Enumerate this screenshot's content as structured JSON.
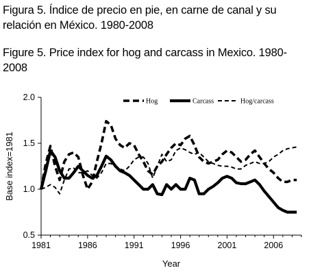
{
  "captions": {
    "spanish": "Figura 5. Índice de precio en pie, en carne de canal y su relación en México. 1980-2008",
    "english": "Figure 5. Price index for hog and carcass in Mexico. 1980-2008"
  },
  "chart_data": {
    "type": "line",
    "title": "",
    "xlabel": "Year",
    "ylabel": "Base index=1981",
    "xlim": [
      1981,
      2009
    ],
    "ylim": [
      0.5,
      2.0
    ],
    "xticks": [
      1981,
      1986,
      1991,
      1996,
      2001,
      2006
    ],
    "yticks": [
      "0.5",
      "1.0",
      "1.5",
      "2.0"
    ],
    "legend_position": "top",
    "grid": false,
    "series": [
      {
        "name": "Hog",
        "style": "bold-dashed",
        "color": "#000000",
        "x": [
          1981,
          1981.5,
          1982,
          1982.5,
          1983,
          1983.5,
          1984,
          1984.5,
          1985,
          1985.5,
          1986,
          1986.5,
          1987,
          1987.5,
          1988,
          1988.5,
          1989,
          1989.5,
          1990,
          1990.5,
          1991,
          1991.5,
          1992,
          1992.5,
          1993,
          1993.5,
          1994,
          1994.5,
          1995,
          1995.5,
          1996,
          1996.5,
          1997,
          1997.5,
          1998,
          1998.5,
          1999,
          1999.5,
          2000,
          2000.5,
          2001,
          2001.5,
          2002,
          2002.5,
          2003,
          2003.5,
          2004,
          2004.5,
          2005,
          2005.5,
          2006,
          2006.5,
          2007,
          2007.5,
          2008,
          2008.5
        ],
        "values": [
          1.0,
          1.28,
          1.47,
          1.25,
          1.1,
          1.3,
          1.38,
          1.4,
          1.35,
          1.15,
          1.0,
          1.08,
          1.3,
          1.5,
          1.74,
          1.7,
          1.55,
          1.48,
          1.45,
          1.5,
          1.48,
          1.38,
          1.3,
          1.2,
          1.16,
          1.25,
          1.3,
          1.38,
          1.45,
          1.5,
          1.48,
          1.55,
          1.58,
          1.48,
          1.35,
          1.3,
          1.28,
          1.3,
          1.32,
          1.38,
          1.42,
          1.4,
          1.35,
          1.3,
          1.32,
          1.38,
          1.42,
          1.35,
          1.28,
          1.22,
          1.18,
          1.12,
          1.08,
          1.08,
          1.1,
          1.1
        ]
      },
      {
        "name": "Carcass",
        "style": "bold-solid",
        "color": "#000000",
        "x": [
          1981,
          1981.5,
          1982,
          1982.5,
          1983,
          1983.5,
          1984,
          1984.5,
          1985,
          1985.5,
          1986,
          1986.5,
          1987,
          1987.5,
          1988,
          1988.5,
          1989,
          1989.5,
          1990,
          1990.5,
          1991,
          1991.5,
          1992,
          1992.5,
          1993,
          1993.5,
          1994,
          1994.5,
          1995,
          1995.5,
          1996,
          1996.5,
          1997,
          1997.5,
          1998,
          1998.5,
          1999,
          1999.5,
          2000,
          2000.5,
          2001,
          2001.5,
          2002,
          2002.5,
          2003,
          2003.5,
          2004,
          2004.5,
          2005,
          2005.5,
          2006,
          2006.5,
          2007,
          2007.5,
          2008,
          2008.5
        ],
        "values": [
          1.0,
          1.2,
          1.42,
          1.35,
          1.2,
          1.12,
          1.12,
          1.18,
          1.25,
          1.2,
          1.15,
          1.12,
          1.15,
          1.25,
          1.36,
          1.32,
          1.25,
          1.2,
          1.18,
          1.15,
          1.1,
          1.05,
          1.0,
          1.0,
          1.05,
          0.95,
          0.94,
          1.05,
          1.0,
          1.05,
          1.0,
          1.0,
          1.12,
          1.1,
          0.95,
          0.95,
          1.0,
          1.03,
          1.07,
          1.12,
          1.14,
          1.12,
          1.07,
          1.06,
          1.06,
          1.08,
          1.1,
          1.05,
          0.98,
          0.92,
          0.86,
          0.8,
          0.77,
          0.75,
          0.75,
          0.75
        ]
      },
      {
        "name": "Hog/carcass",
        "style": "thin-dashed",
        "color": "#000000",
        "x": [
          1981,
          1981.5,
          1982,
          1982.5,
          1983,
          1983.5,
          1984,
          1984.5,
          1985,
          1985.5,
          1986,
          1986.5,
          1987,
          1987.5,
          1988,
          1988.5,
          1989,
          1989.5,
          1990,
          1990.5,
          1991,
          1991.5,
          1992,
          1992.5,
          1993,
          1993.5,
          1994,
          1994.5,
          1995,
          1995.5,
          1996,
          1996.5,
          1997,
          1997.5,
          1998,
          1998.5,
          1999,
          1999.5,
          2000,
          2000.5,
          2001,
          2001.5,
          2002,
          2002.5,
          2003,
          2003.5,
          2004,
          2004.5,
          2005,
          2005.5,
          2006,
          2006.5,
          2007,
          2007.5,
          2008,
          2008.5
        ],
        "values": [
          1.0,
          1.02,
          1.05,
          1.02,
          0.95,
          1.1,
          1.22,
          1.23,
          1.18,
          1.18,
          1.2,
          1.15,
          1.12,
          1.18,
          1.28,
          1.28,
          1.25,
          1.22,
          1.2,
          1.25,
          1.32,
          1.35,
          1.35,
          1.28,
          1.12,
          1.25,
          1.38,
          1.3,
          1.32,
          1.42,
          1.45,
          1.43,
          1.4,
          1.38,
          1.4,
          1.35,
          1.3,
          1.28,
          1.26,
          1.25,
          1.25,
          1.24,
          1.22,
          1.22,
          1.26,
          1.28,
          1.3,
          1.28,
          1.28,
          1.3,
          1.35,
          1.38,
          1.42,
          1.44,
          1.45,
          1.46
        ]
      }
    ]
  }
}
